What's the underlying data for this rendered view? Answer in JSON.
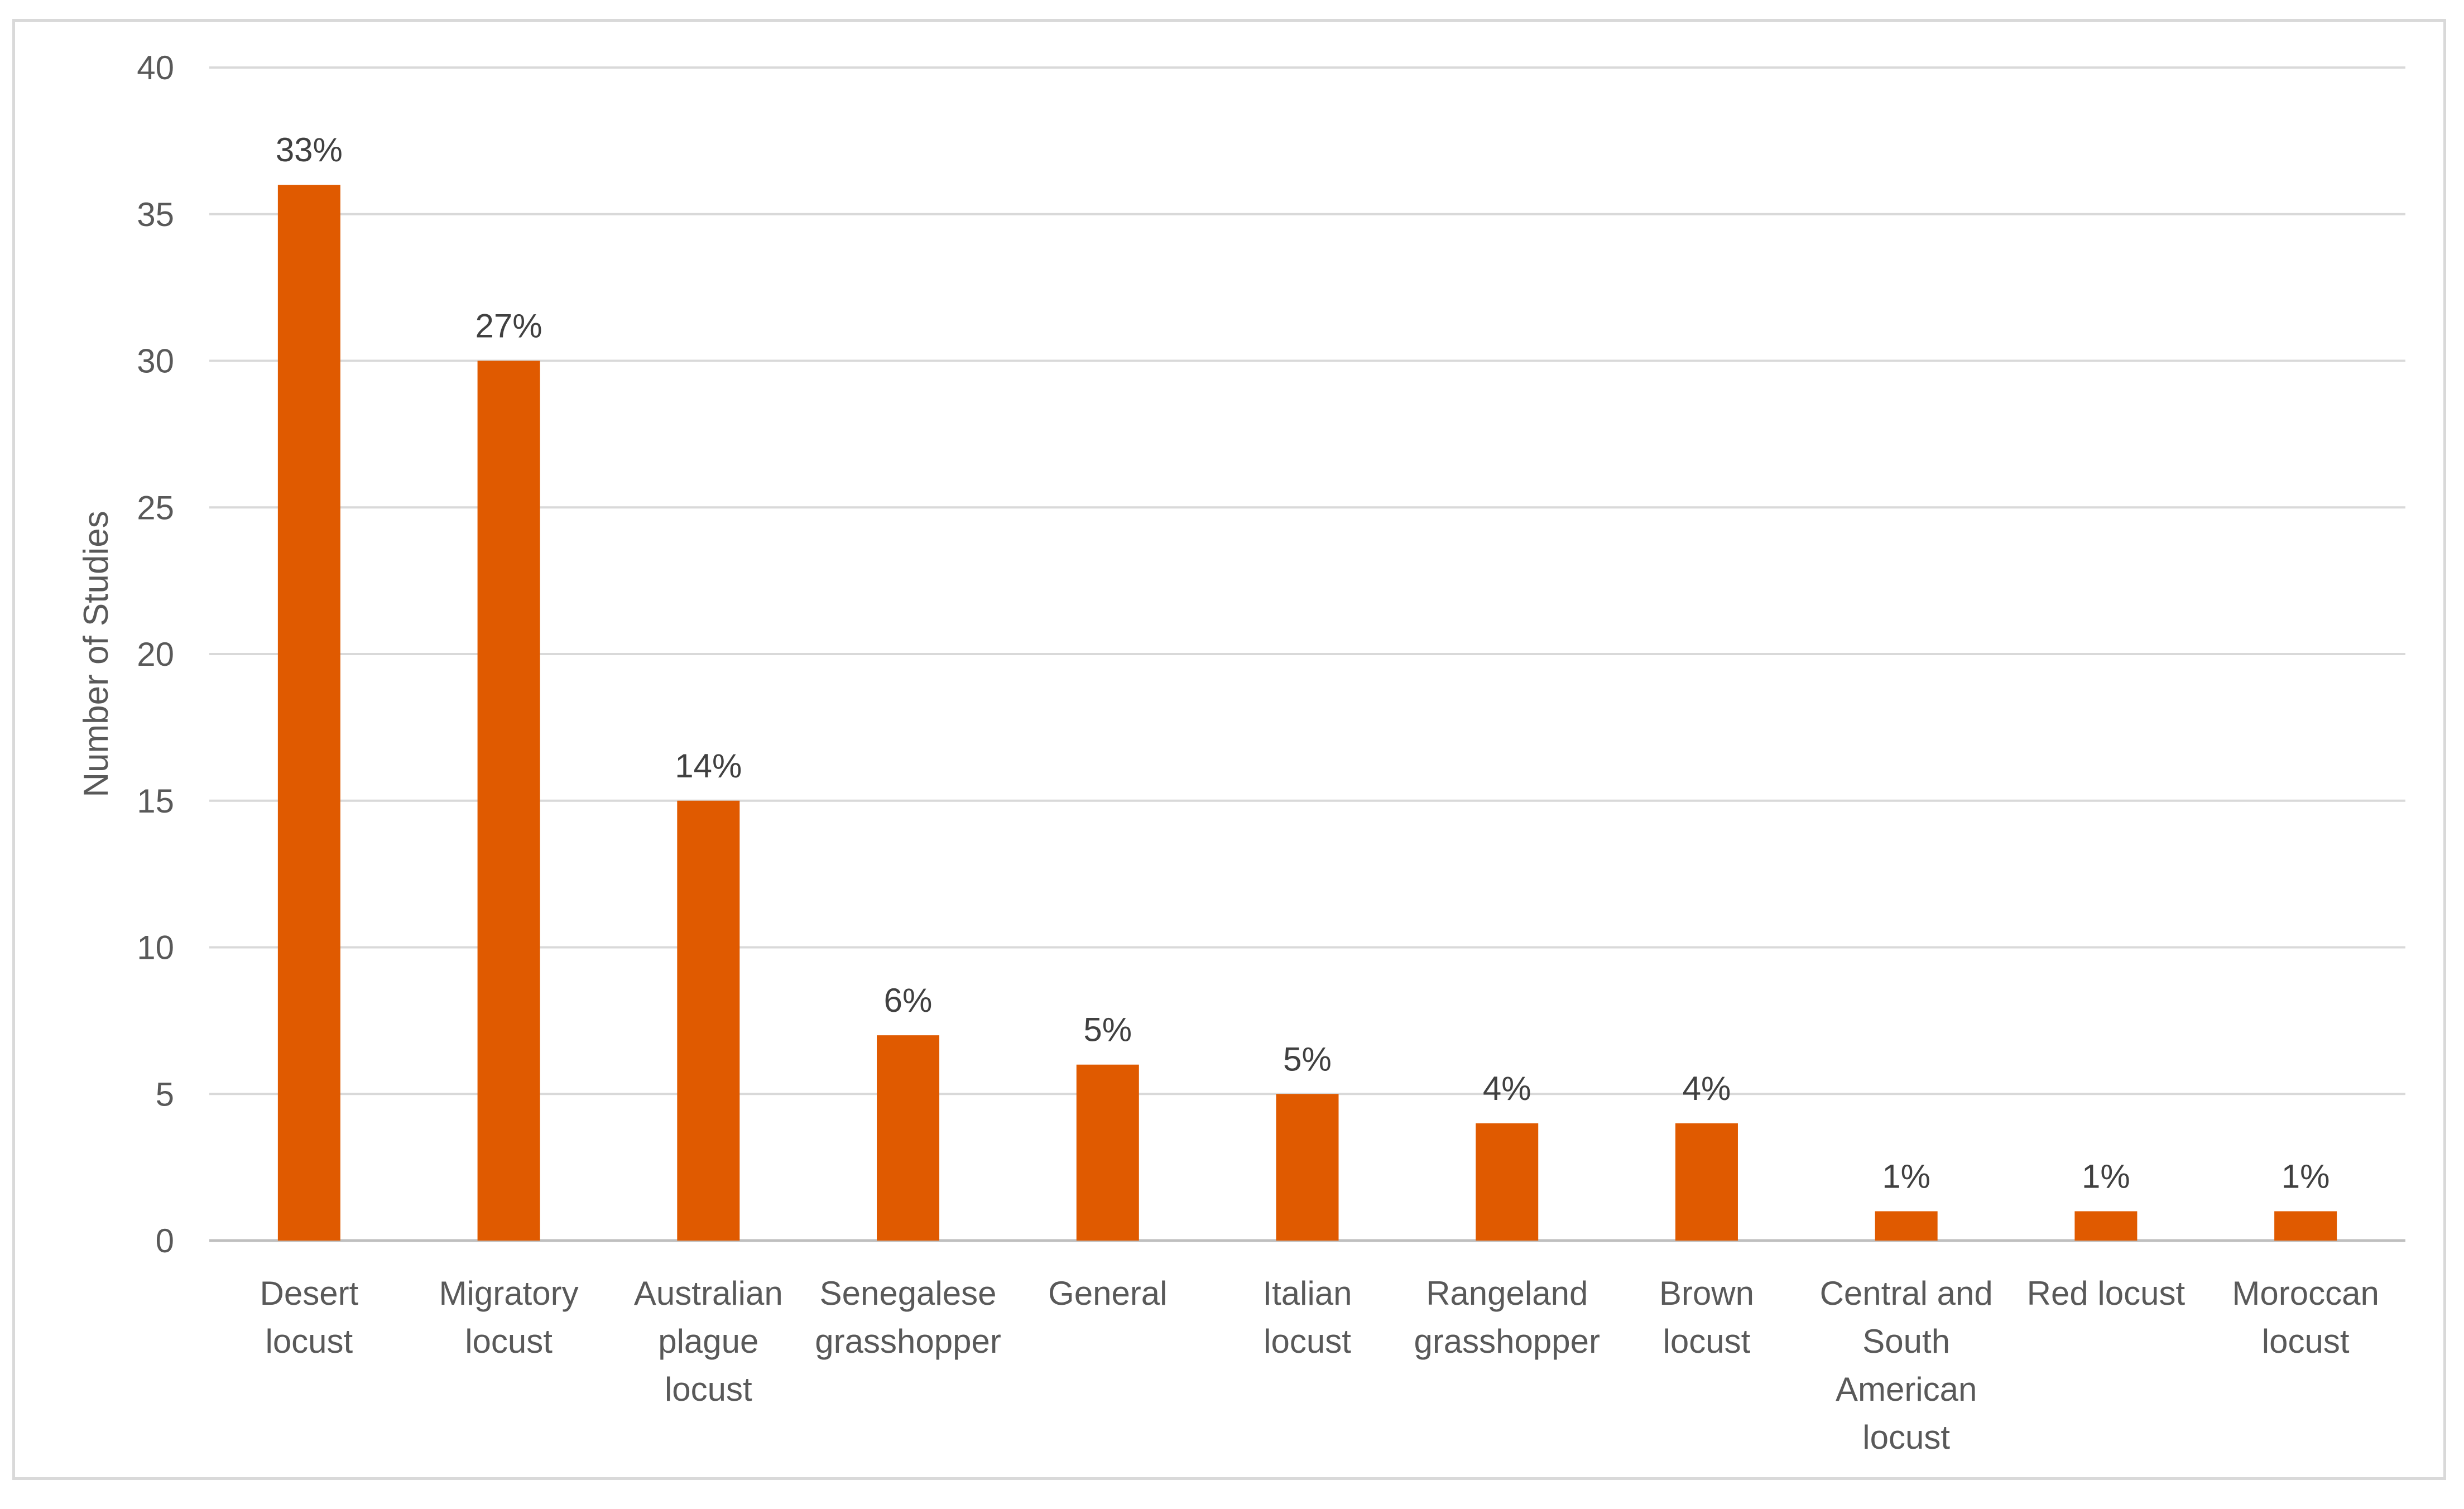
{
  "chart_data": {
    "type": "bar",
    "title": "",
    "xlabel": "",
    "ylabel": "Number of Studies",
    "ylim": [
      0,
      40
    ],
    "yticks": [
      0,
      5,
      10,
      15,
      20,
      25,
      30,
      35,
      40
    ],
    "grid": true,
    "legend": "none",
    "categories": [
      [
        "Desert",
        "locust"
      ],
      [
        "Migratory",
        "locust"
      ],
      [
        "Australian",
        "plague",
        "locust"
      ],
      [
        "Senegalese",
        "grasshopper"
      ],
      [
        "General"
      ],
      [
        "Italian",
        "locust"
      ],
      [
        "Rangeland",
        "grasshopper"
      ],
      [
        "Brown",
        "locust"
      ],
      [
        "Central and",
        "South",
        "American",
        "locust"
      ],
      [
        "Red locust"
      ],
      [
        "Moroccan",
        "locust"
      ]
    ],
    "values": [
      36,
      30,
      15,
      7,
      6,
      5,
      4,
      4,
      1,
      1,
      1
    ],
    "data_labels": [
      "33%",
      "27%",
      "14%",
      "6%",
      "5%",
      "5%",
      "4%",
      "4%",
      "1%",
      "1%",
      "1%"
    ],
    "bar_color": "#e05a00",
    "gridline_color": "#d9d9d9",
    "axis_color": "#bfbfbf"
  }
}
